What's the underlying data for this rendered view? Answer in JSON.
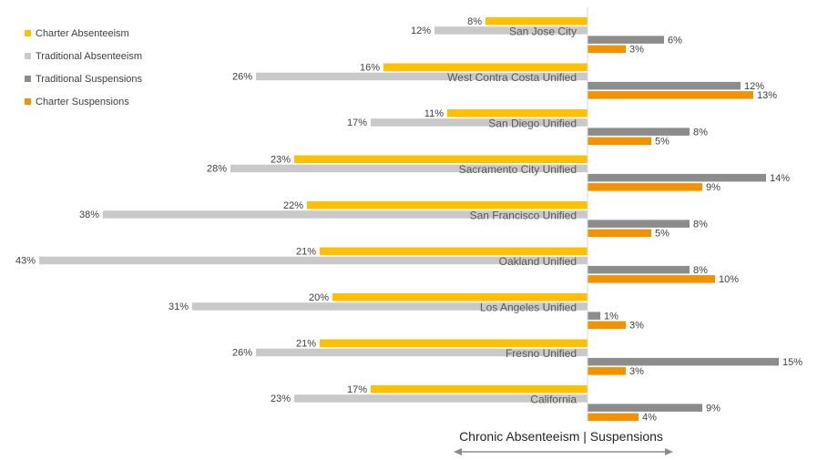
{
  "chart_data": {
    "type": "bar",
    "orientation": "horizontal-diverging",
    "categories": [
      "San Jose City",
      "West Contra Costa Unified",
      "San Diego Unified",
      "Sacramento City Unified",
      "San Francisco Unified",
      "Oakland Unified",
      "Los Angeles Unified",
      "Fresno Unified",
      "California"
    ],
    "series": [
      {
        "name": "Charter Absenteeism",
        "color": "#FFC000",
        "direction": "left",
        "values": [
          8,
          16,
          11,
          23,
          22,
          21,
          20,
          21,
          17
        ]
      },
      {
        "name": "Traditional Absenteeism",
        "color": "#C9C9C9",
        "direction": "left",
        "values": [
          12,
          26,
          17,
          28,
          38,
          43,
          31,
          26,
          23
        ]
      },
      {
        "name": "Traditional Suspensions",
        "color": "#8C8C8C",
        "direction": "right",
        "values": [
          6,
          12,
          8,
          14,
          8,
          8,
          1,
          15,
          9
        ]
      },
      {
        "name": "Charter Suspensions",
        "color": "#F39200",
        "direction": "right",
        "values": [
          3,
          13,
          5,
          9,
          5,
          10,
          3,
          3,
          4
        ]
      }
    ],
    "value_suffix": "%",
    "legend_position": "top-left",
    "axis_caption": "Chronic Absenteeism | Suspensions",
    "grid": false
  }
}
